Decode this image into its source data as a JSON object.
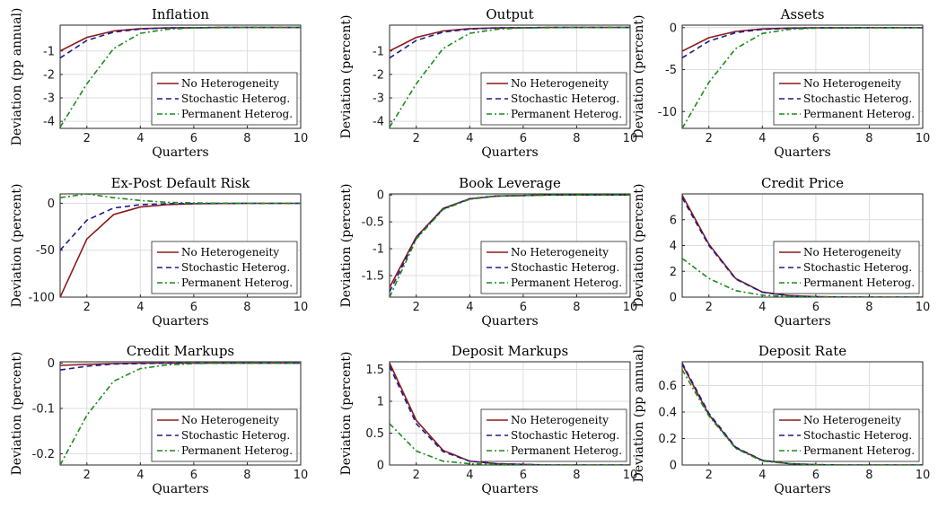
{
  "figure": {
    "legend_labels": [
      "No Heterogeneity",
      "Stochastic Heterog.",
      "Permanent Heterog."
    ],
    "series_colors": {
      "none": "#8b1a1a",
      "stochastic": "#1c1c8c",
      "permanent": "#1a8c1a"
    },
    "legend_position": "bottom-right",
    "grid": true
  },
  "chart_data": [
    {
      "type": "line",
      "title": "Inflation",
      "xlabel": "Quarters",
      "ylabel": "Deviation (pp annual)",
      "x": [
        1,
        2,
        3,
        4,
        5,
        6,
        7,
        8,
        9,
        10
      ],
      "xlim": [
        1,
        10
      ],
      "ylim": [
        -4.3,
        0.1
      ],
      "xticks": [
        2,
        4,
        6,
        8,
        10
      ],
      "yticks": [
        -4,
        -3,
        -2,
        -1
      ],
      "series": [
        {
          "name": "No Heterogeneity",
          "values": [
            -1.0,
            -0.42,
            -0.15,
            -0.05,
            -0.02,
            -0.01,
            0,
            0,
            0,
            0
          ]
        },
        {
          "name": "Stochastic Heterog.",
          "values": [
            -1.3,
            -0.55,
            -0.2,
            -0.07,
            -0.02,
            -0.01,
            0,
            0,
            0,
            0
          ]
        },
        {
          "name": "Permanent Heterog.",
          "values": [
            -4.25,
            -2.4,
            -0.9,
            -0.25,
            -0.08,
            -0.02,
            -0.01,
            0,
            0,
            0
          ]
        }
      ]
    },
    {
      "type": "line",
      "title": "Output",
      "xlabel": "Quarters",
      "ylabel": "Deviation (percent)",
      "x": [
        1,
        2,
        3,
        4,
        5,
        6,
        7,
        8,
        9,
        10
      ],
      "xlim": [
        1,
        10
      ],
      "ylim": [
        -4.3,
        0.1
      ],
      "xticks": [
        2,
        4,
        6,
        8,
        10
      ],
      "yticks": [
        -4,
        -3,
        -2,
        -1
      ],
      "series": [
        {
          "name": "No Heterogeneity",
          "values": [
            -1.0,
            -0.42,
            -0.15,
            -0.05,
            -0.02,
            -0.01,
            0,
            0,
            0,
            0
          ]
        },
        {
          "name": "Stochastic Heterog.",
          "values": [
            -1.3,
            -0.55,
            -0.2,
            -0.07,
            -0.02,
            -0.01,
            0,
            0,
            0,
            0
          ]
        },
        {
          "name": "Permanent Heterog.",
          "values": [
            -4.25,
            -2.4,
            -0.9,
            -0.25,
            -0.08,
            -0.02,
            -0.01,
            0,
            0,
            0
          ]
        }
      ]
    },
    {
      "type": "line",
      "title": "Assets",
      "xlabel": "Quarters",
      "ylabel": "Deviation (percent)",
      "x": [
        1,
        2,
        3,
        4,
        5,
        6,
        7,
        8,
        9,
        10
      ],
      "xlim": [
        1,
        10
      ],
      "ylim": [
        -12,
        0.3
      ],
      "xticks": [
        2,
        4,
        6,
        8,
        10
      ],
      "yticks": [
        -10,
        -5,
        0
      ],
      "series": [
        {
          "name": "No Heterogeneity",
          "values": [
            -2.8,
            -1.2,
            -0.45,
            -0.15,
            -0.05,
            -0.02,
            -0.01,
            0,
            0,
            0
          ]
        },
        {
          "name": "Stochastic Heterog.",
          "values": [
            -3.6,
            -1.6,
            -0.6,
            -0.2,
            -0.07,
            -0.02,
            -0.01,
            0,
            0,
            0
          ]
        },
        {
          "name": "Permanent Heterog.",
          "values": [
            -12.0,
            -6.5,
            -2.5,
            -0.7,
            -0.2,
            -0.06,
            -0.02,
            0,
            0,
            0
          ]
        }
      ]
    },
    {
      "type": "line",
      "title": "Ex-Post Default Risk",
      "xlabel": "Quarters",
      "ylabel": "Deviation (percent)",
      "x": [
        1,
        2,
        3,
        4,
        5,
        6,
        7,
        8,
        9,
        10
      ],
      "xlim": [
        1,
        10
      ],
      "ylim": [
        -100,
        10
      ],
      "xticks": [
        2,
        4,
        6,
        8,
        10
      ],
      "yticks": [
        -100,
        -50,
        0
      ],
      "series": [
        {
          "name": "No Heterogeneity",
          "values": [
            -100,
            -38,
            -12,
            -4,
            -1.5,
            -0.5,
            -0.2,
            0,
            0,
            0
          ]
        },
        {
          "name": "Stochastic Heterog.",
          "values": [
            -50,
            -18,
            -5,
            -1.5,
            -0.5,
            -0.2,
            0,
            0,
            0,
            0
          ]
        },
        {
          "name": "Permanent Heterog.",
          "values": [
            6,
            10,
            6,
            3,
            1,
            0.4,
            0.1,
            0,
            0,
            0
          ]
        }
      ]
    },
    {
      "type": "line",
      "title": "Book Leverage",
      "xlabel": "Quarters",
      "ylabel": "Deviation (percent)",
      "x": [
        1,
        2,
        3,
        4,
        5,
        6,
        7,
        8,
        9,
        10
      ],
      "xlim": [
        1,
        10
      ],
      "ylim": [
        -1.9,
        0.02
      ],
      "xticks": [
        2,
        4,
        6,
        8,
        10
      ],
      "yticks": [
        -1.5,
        -1,
        -0.5,
        0
      ],
      "series": [
        {
          "name": "No Heterogeneity",
          "values": [
            -1.72,
            -0.78,
            -0.25,
            -0.07,
            -0.02,
            -0.01,
            0,
            0,
            0,
            0
          ]
        },
        {
          "name": "Stochastic Heterog.",
          "values": [
            -1.8,
            -0.8,
            -0.26,
            -0.07,
            -0.02,
            -0.01,
            0,
            0,
            0,
            0
          ]
        },
        {
          "name": "Permanent Heterog.",
          "values": [
            -1.9,
            -0.82,
            -0.27,
            -0.08,
            -0.02,
            -0.01,
            0,
            0,
            0,
            0
          ]
        }
      ]
    },
    {
      "type": "line",
      "title": "Credit Price",
      "xlabel": "Quarters",
      "ylabel": "Deviation (percent)",
      "x": [
        1,
        2,
        3,
        4,
        5,
        6,
        7,
        8,
        9,
        10
      ],
      "xlim": [
        1,
        10
      ],
      "ylim": [
        0,
        8
      ],
      "xticks": [
        2,
        4,
        6,
        8,
        10
      ],
      "yticks": [
        0,
        2,
        4,
        6
      ],
      "series": [
        {
          "name": "No Heterogeneity",
          "values": [
            7.9,
            4.1,
            1.45,
            0.4,
            0.12,
            0.04,
            0.01,
            0,
            0,
            0
          ]
        },
        {
          "name": "Stochastic Heterog.",
          "values": [
            7.7,
            4.0,
            1.4,
            0.38,
            0.11,
            0.03,
            0.01,
            0,
            0,
            0
          ]
        },
        {
          "name": "Permanent Heterog.",
          "values": [
            3.0,
            1.45,
            0.5,
            0.15,
            0.05,
            0.02,
            0,
            0,
            0,
            0
          ]
        }
      ]
    },
    {
      "type": "line",
      "title": "Credit Markups",
      "xlabel": "Quarters",
      "ylabel": "Deviation (percent)",
      "x": [
        1,
        2,
        3,
        4,
        5,
        6,
        7,
        8,
        9,
        10
      ],
      "xlim": [
        1,
        10
      ],
      "ylim": [
        -0.225,
        0.003
      ],
      "xticks": [
        2,
        4,
        6,
        8,
        10
      ],
      "yticks": [
        -0.2,
        -0.1,
        0
      ],
      "series": [
        {
          "name": "No Heterogeneity",
          "values": [
            -0.005,
            -0.003,
            -0.001,
            0,
            0,
            0,
            0,
            0,
            0,
            0
          ]
        },
        {
          "name": "Stochastic Heterog.",
          "values": [
            -0.015,
            -0.007,
            -0.002,
            -0.001,
            0,
            0,
            0,
            0,
            0,
            0
          ]
        },
        {
          "name": "Permanent Heterog.",
          "values": [
            -0.225,
            -0.115,
            -0.04,
            -0.012,
            -0.004,
            -0.001,
            0,
            0,
            0,
            0
          ]
        }
      ]
    },
    {
      "type": "line",
      "title": "Deposit Markups",
      "xlabel": "Quarters",
      "ylabel": "Deviation (percent)",
      "x": [
        1,
        2,
        3,
        4,
        5,
        6,
        7,
        8,
        9,
        10
      ],
      "xlim": [
        1,
        10
      ],
      "ylim": [
        0,
        1.62
      ],
      "xticks": [
        2,
        4,
        6,
        8,
        10
      ],
      "yticks": [
        0,
        0.5,
        1,
        1.5
      ],
      "series": [
        {
          "name": "No Heterogeneity",
          "values": [
            1.6,
            0.7,
            0.23,
            0.06,
            0.02,
            0.01,
            0,
            0,
            0,
            0
          ]
        },
        {
          "name": "Stochastic Heterog.",
          "values": [
            1.55,
            0.65,
            0.21,
            0.06,
            0.02,
            0.01,
            0,
            0,
            0,
            0
          ]
        },
        {
          "name": "Permanent Heterog.",
          "values": [
            0.65,
            0.22,
            0.06,
            0.02,
            0.01,
            0,
            0,
            0,
            0,
            0
          ]
        }
      ]
    },
    {
      "type": "line",
      "title": "Deposit Rate",
      "xlabel": "Quarters",
      "ylabel": "Deviation (pp annual)",
      "x": [
        1,
        2,
        3,
        4,
        5,
        6,
        7,
        8,
        9,
        10
      ],
      "xlim": [
        1,
        10
      ],
      "ylim": [
        0,
        0.78
      ],
      "xticks": [
        2,
        4,
        6,
        8,
        10
      ],
      "yticks": [
        0,
        0.2,
        0.4,
        0.6
      ],
      "series": [
        {
          "name": "No Heterogeneity",
          "values": [
            0.76,
            0.38,
            0.13,
            0.035,
            0.01,
            0.003,
            0,
            0,
            0,
            0
          ]
        },
        {
          "name": "Stochastic Heterog.",
          "values": [
            0.77,
            0.39,
            0.135,
            0.035,
            0.01,
            0.003,
            0,
            0,
            0,
            0
          ]
        },
        {
          "name": "Permanent Heterog.",
          "values": [
            0.72,
            0.37,
            0.125,
            0.03,
            0.01,
            0.003,
            0,
            0,
            0,
            0
          ]
        }
      ]
    }
  ]
}
